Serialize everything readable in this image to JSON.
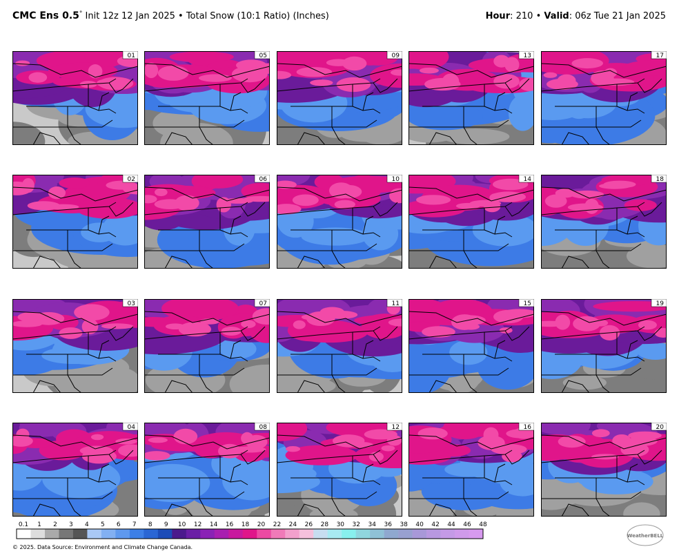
{
  "header": {
    "model": "CMC Ens 0.5",
    "degree": "°",
    "subtitle": " Init 12z 12 Jan 2025 • Total Snow (10:1 Ratio) (Inches)",
    "hour_label": "Hour",
    "hour_value": ": 210 • ",
    "valid_label": "Valid",
    "valid_value": ": 06z Tue 21 Jan 2025"
  },
  "panels": [
    "01",
    "02",
    "03",
    "04",
    "05",
    "06",
    "07",
    "08",
    "09",
    "10",
    "11",
    "12",
    "13",
    "14",
    "15",
    "16",
    "17",
    "18",
    "19",
    "20"
  ],
  "colorbar": {
    "labels": [
      "0.1",
      "1",
      "2",
      "3",
      "4",
      "5",
      "6",
      "7",
      "8",
      "9",
      "10",
      "12",
      "14",
      "16",
      "18",
      "20",
      "22",
      "24",
      "26",
      "28",
      "30",
      "32",
      "34",
      "36",
      "38",
      "40",
      "42",
      "44",
      "46",
      "48"
    ]
  },
  "footer": {
    "credit": "© 2025. Data Source: Environment and Climate Change Canada.",
    "logo": "WeatherBELL"
  }
}
